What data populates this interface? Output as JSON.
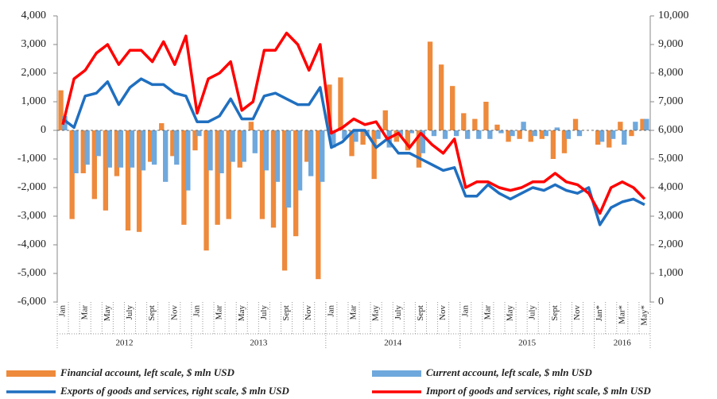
{
  "chart_data": {
    "type": "bar_line_dual",
    "categories": [
      "Jan",
      null,
      "Mar",
      null,
      "May",
      null,
      "July",
      null,
      "Sept",
      null,
      "Nov",
      null,
      "Jan",
      null,
      "Mar",
      null,
      "May",
      null,
      "July",
      null,
      "Sept",
      null,
      "Nov",
      null,
      "Jan",
      null,
      "Mar",
      null,
      "May",
      null,
      "July",
      null,
      "Sept",
      null,
      "Nov",
      null,
      "Jan",
      null,
      "Mar",
      null,
      "May",
      null,
      "July",
      null,
      "Sept",
      null,
      "Nov",
      null,
      "Jan*",
      null,
      "Mar*",
      null,
      "May*"
    ],
    "years": [
      "2012",
      "2013",
      "2014",
      "2015",
      "2016"
    ],
    "ylim": [
      -6000,
      4000
    ],
    "yticks": [
      {
        "value": -6000,
        "label": "-6,000"
      },
      {
        "value": -5000,
        "label": "-5,000"
      },
      {
        "value": -4000,
        "label": "-4,000"
      },
      {
        "value": -3000,
        "label": "-3,000"
      },
      {
        "value": -2000,
        "label": "-2,000"
      },
      {
        "value": -1000,
        "label": "-1,000"
      },
      0,
      {
        "value": 1000,
        "label": "1,000"
      },
      {
        "value": 2000,
        "label": "2,000"
      },
      {
        "value": 3000,
        "label": "3,000"
      },
      {
        "value": 4000,
        "label": "4,000"
      }
    ],
    "y2lim": [
      0,
      10000
    ],
    "y2ticks": [
      0,
      {
        "value": 1000,
        "label": "1,000"
      },
      {
        "value": 2000,
        "label": "2,000"
      },
      {
        "value": 3000,
        "label": "3,000"
      },
      {
        "value": 4000,
        "label": "4,000"
      },
      {
        "value": 5000,
        "label": "5,000"
      },
      {
        "value": 6000,
        "label": "6,000"
      },
      {
        "value": 7000,
        "label": "7,000"
      },
      {
        "value": 8000,
        "label": "8,000"
      },
      {
        "value": 9000,
        "label": "9,000"
      },
      {
        "value": 10000,
        "label": "10,000"
      }
    ],
    "series": [
      {
        "name": "Financial account, left scale, $ mln USD",
        "type": "bar",
        "color": "#ee8a3c",
        "values": [
          1400,
          -3100,
          -1500,
          -2400,
          -2800,
          -1600,
          -3500,
          -3550,
          -1100,
          250,
          -900,
          -3300,
          -700,
          -4200,
          -3300,
          -3100,
          -1300,
          300,
          -3100,
          -3400,
          -4900,
          -3700,
          -1100,
          -5200,
          1600,
          1850,
          -900,
          -500,
          -1700,
          700,
          -400,
          -700,
          -1300,
          3100,
          2300,
          1550,
          600,
          400,
          1000,
          200,
          -400,
          -300,
          -400,
          -300,
          -1000,
          -800,
          400,
          0,
          -500,
          -600,
          300,
          -200,
          400
        ]
      },
      {
        "name": "Current account, left scale, $ mln USD",
        "type": "bar",
        "color": "#6fa8dc",
        "values": [
          500,
          -1500,
          -1200,
          -900,
          -1300,
          -1300,
          -1300,
          -1400,
          -1200,
          -1800,
          -1200,
          -2100,
          -200,
          -1400,
          -1500,
          -1100,
          -1100,
          -800,
          -1400,
          -1800,
          -2700,
          -2100,
          -1600,
          -1800,
          -600,
          -300,
          -400,
          -200,
          -300,
          -600,
          -200,
          -100,
          -800,
          -200,
          -300,
          -200,
          -300,
          -300,
          -300,
          -100,
          -200,
          300,
          -200,
          -200,
          100,
          -300,
          -200,
          0,
          -400,
          -300,
          -500,
          300,
          400
        ]
      },
      {
        "name": "Exports of goods and services, right scale, $ mln USD",
        "type": "line",
        "axis": "y2",
        "color": "#1f6fc0",
        "values": [
          6400,
          6100,
          7200,
          7300,
          7700,
          6900,
          7500,
          7800,
          7600,
          7600,
          7300,
          7200,
          6300,
          6300,
          6500,
          7100,
          6400,
          6400,
          7200,
          7300,
          7100,
          6900,
          6900,
          7500,
          5400,
          5600,
          6000,
          6000,
          5400,
          5700,
          5200,
          5200,
          5000,
          4800,
          4600,
          4700,
          3700,
          3700,
          4100,
          3800,
          3600,
          3800,
          4000,
          3900,
          4100,
          3900,
          3800,
          4000,
          2700,
          3300,
          3500,
          3600,
          3400
        ]
      },
      {
        "name": "Import of goods and services, right scale, $ mln USD",
        "type": "line",
        "axis": "y2",
        "color": "#ff0000",
        "values": [
          6200,
          7800,
          8100,
          8700,
          9000,
          8300,
          8800,
          8800,
          8400,
          9100,
          8300,
          9300,
          6600,
          7800,
          8000,
          8400,
          6700,
          7000,
          8800,
          8800,
          9400,
          9000,
          8100,
          9000,
          5900,
          6100,
          6400,
          6200,
          6300,
          5700,
          5900,
          5400,
          5900,
          5500,
          5200,
          5700,
          4000,
          4200,
          4200,
          4000,
          3900,
          4000,
          4200,
          4200,
          4500,
          4200,
          4100,
          3800,
          3100,
          4000,
          4200,
          4000,
          3600
        ]
      }
    ]
  }
}
